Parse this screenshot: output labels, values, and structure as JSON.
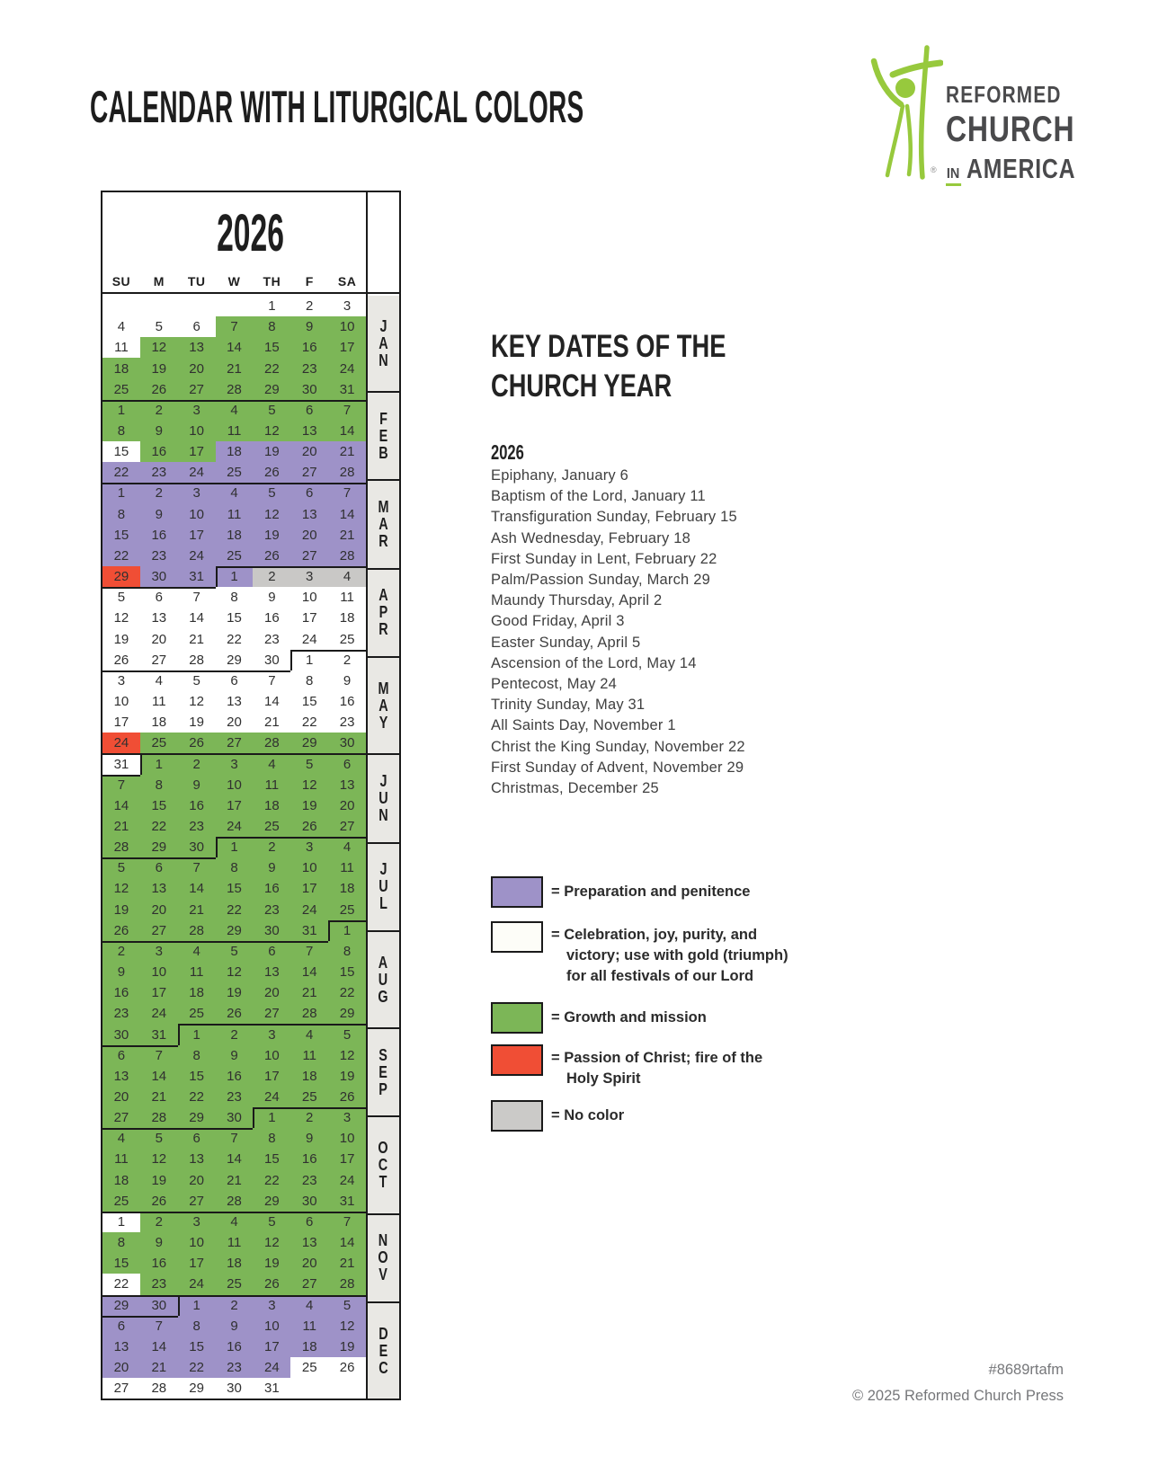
{
  "page": {
    "title": "CALENDAR WITH LITURGICAL COLORS",
    "footer_code": "#8689rtafm",
    "footer_copyright": "© 2025 Reformed Church Press"
  },
  "logo": {
    "name1": "REFORMED",
    "name2": "CHURCH",
    "name3_in": "IN",
    "name3_rest": "AMERICA",
    "registered": "®",
    "green": "#97c93d",
    "text_color": "#4a4a4c"
  },
  "calendar": {
    "year": "2026",
    "day_headers": [
      "SU",
      "M",
      "TU",
      "W",
      "TH",
      "F",
      "SA"
    ],
    "colors": {
      "W": "#ffffff",
      "G": "#7cb657",
      "P": "#9e92c8",
      "R": "#f04e35",
      "N": "#c9c8c6"
    },
    "months": [
      {
        "abbr": "JAN",
        "rows": 5
      },
      {
        "abbr": "FEB",
        "rows": 4
      },
      {
        "abbr": "MAR",
        "rows": 4
      },
      {
        "abbr": "APR",
        "rows": 4
      },
      {
        "abbr": "MAY",
        "rows": 5
      },
      {
        "abbr": "JUN",
        "rows": 4
      },
      {
        "abbr": "JUL",
        "rows": 4
      },
      {
        "abbr": "AUG",
        "rows": 5
      },
      {
        "abbr": "SEP",
        "rows": 4
      },
      {
        "abbr": "OCT",
        "rows": 5
      },
      {
        "abbr": "NOV",
        "rows": 4
      },
      {
        "abbr": "DEC",
        "rows": 5
      }
    ],
    "weeks": [
      [
        "",
        "",
        "",
        "",
        "1|1|W",
        "1|2|W",
        "1|3|W"
      ],
      [
        "1|4|W",
        "1|5|W",
        "1|6|W",
        "1|7|G",
        "1|8|G",
        "1|9|G",
        "1|10|G"
      ],
      [
        "1|11|W",
        "1|12|G",
        "1|13|G",
        "1|14|G",
        "1|15|G",
        "1|16|G",
        "1|17|G"
      ],
      [
        "1|18|G",
        "1|19|G",
        "1|20|G",
        "1|21|G",
        "1|22|G",
        "1|23|G",
        "1|24|G"
      ],
      [
        "1|25|G",
        "1|26|G",
        "1|27|G",
        "1|28|G",
        "1|29|G",
        "1|30|G",
        "1|31|G"
      ],
      [
        "2|1|G",
        "2|2|G",
        "2|3|G",
        "2|4|G",
        "2|5|G",
        "2|6|G",
        "2|7|G"
      ],
      [
        "2|8|G",
        "2|9|G",
        "2|10|G",
        "2|11|G",
        "2|12|G",
        "2|13|G",
        "2|14|G"
      ],
      [
        "2|15|W",
        "2|16|G",
        "2|17|G",
        "2|18|P",
        "2|19|P",
        "2|20|P",
        "2|21|P"
      ],
      [
        "2|22|P",
        "2|23|P",
        "2|24|P",
        "2|25|P",
        "2|26|P",
        "2|27|P",
        "2|28|P"
      ],
      [
        "3|1|P",
        "3|2|P",
        "3|3|P",
        "3|4|P",
        "3|5|P",
        "3|6|P",
        "3|7|P"
      ],
      [
        "3|8|P",
        "3|9|P",
        "3|10|P",
        "3|11|P",
        "3|12|P",
        "3|13|P",
        "3|14|P"
      ],
      [
        "3|15|P",
        "3|16|P",
        "3|17|P",
        "3|18|P",
        "3|19|P",
        "3|20|P",
        "3|21|P"
      ],
      [
        "3|22|P",
        "3|23|P",
        "3|24|P",
        "3|25|P",
        "3|26|P",
        "3|27|P",
        "3|28|P"
      ],
      [
        "3|29|R",
        "3|30|P",
        "3|31|P",
        "4|1|P",
        "4|2|N",
        "4|3|N",
        "4|4|N"
      ],
      [
        "4|5|W",
        "4|6|W",
        "4|7|W",
        "4|8|W",
        "4|9|W",
        "4|10|W",
        "4|11|W"
      ],
      [
        "4|12|W",
        "4|13|W",
        "4|14|W",
        "4|15|W",
        "4|16|W",
        "4|17|W",
        "4|18|W"
      ],
      [
        "4|19|W",
        "4|20|W",
        "4|21|W",
        "4|22|W",
        "4|23|W",
        "4|24|W",
        "4|25|W"
      ],
      [
        "4|26|W",
        "4|27|W",
        "4|28|W",
        "4|29|W",
        "4|30|W",
        "5|1|W",
        "5|2|W"
      ],
      [
        "5|3|W",
        "5|4|W",
        "5|5|W",
        "5|6|W",
        "5|7|W",
        "5|8|W",
        "5|9|W"
      ],
      [
        "5|10|W",
        "5|11|W",
        "5|12|W",
        "5|13|W",
        "5|14|W",
        "5|15|W",
        "5|16|W"
      ],
      [
        "5|17|W",
        "5|18|W",
        "5|19|W",
        "5|20|W",
        "5|21|W",
        "5|22|W",
        "5|23|W"
      ],
      [
        "5|24|R",
        "5|25|G",
        "5|26|G",
        "5|27|G",
        "5|28|G",
        "5|29|G",
        "5|30|G"
      ],
      [
        "5|31|W",
        "6|1|G",
        "6|2|G",
        "6|3|G",
        "6|4|G",
        "6|5|G",
        "6|6|G"
      ],
      [
        "6|7|G",
        "6|8|G",
        "6|9|G",
        "6|10|G",
        "6|11|G",
        "6|12|G",
        "6|13|G"
      ],
      [
        "6|14|G",
        "6|15|G",
        "6|16|G",
        "6|17|G",
        "6|18|G",
        "6|19|G",
        "6|20|G"
      ],
      [
        "6|21|G",
        "6|22|G",
        "6|23|G",
        "6|24|G",
        "6|25|G",
        "6|26|G",
        "6|27|G"
      ],
      [
        "6|28|G",
        "6|29|G",
        "6|30|G",
        "7|1|G",
        "7|2|G",
        "7|3|G",
        "7|4|G"
      ],
      [
        "7|5|G",
        "7|6|G",
        "7|7|G",
        "7|8|G",
        "7|9|G",
        "7|10|G",
        "7|11|G"
      ],
      [
        "7|12|G",
        "7|13|G",
        "7|14|G",
        "7|15|G",
        "7|16|G",
        "7|17|G",
        "7|18|G"
      ],
      [
        "7|19|G",
        "7|20|G",
        "7|21|G",
        "7|22|G",
        "7|23|G",
        "7|24|G",
        "7|25|G"
      ],
      [
        "7|26|G",
        "7|27|G",
        "7|28|G",
        "7|29|G",
        "7|30|G",
        "7|31|G",
        "8|1|G"
      ],
      [
        "8|2|G",
        "8|3|G",
        "8|4|G",
        "8|5|G",
        "8|6|G",
        "8|7|G",
        "8|8|G"
      ],
      [
        "8|9|G",
        "8|10|G",
        "8|11|G",
        "8|12|G",
        "8|13|G",
        "8|14|G",
        "8|15|G"
      ],
      [
        "8|16|G",
        "8|17|G",
        "8|18|G",
        "8|19|G",
        "8|20|G",
        "8|21|G",
        "8|22|G"
      ],
      [
        "8|23|G",
        "8|24|G",
        "8|25|G",
        "8|26|G",
        "8|27|G",
        "8|28|G",
        "8|29|G"
      ],
      [
        "8|30|G",
        "8|31|G",
        "9|1|G",
        "9|2|G",
        "9|3|G",
        "9|4|G",
        "9|5|G"
      ],
      [
        "9|6|G",
        "9|7|G",
        "9|8|G",
        "9|9|G",
        "9|10|G",
        "9|11|G",
        "9|12|G"
      ],
      [
        "9|13|G",
        "9|14|G",
        "9|15|G",
        "9|16|G",
        "9|17|G",
        "9|18|G",
        "9|19|G"
      ],
      [
        "9|20|G",
        "9|21|G",
        "9|22|G",
        "9|23|G",
        "9|24|G",
        "9|25|G",
        "9|26|G"
      ],
      [
        "9|27|G",
        "9|28|G",
        "9|29|G",
        "9|30|G",
        "10|1|G",
        "10|2|G",
        "10|3|G"
      ],
      [
        "10|4|G",
        "10|5|G",
        "10|6|G",
        "10|7|G",
        "10|8|G",
        "10|9|G",
        "10|10|G"
      ],
      [
        "10|11|G",
        "10|12|G",
        "10|13|G",
        "10|14|G",
        "10|15|G",
        "10|16|G",
        "10|17|G"
      ],
      [
        "10|18|G",
        "10|19|G",
        "10|20|G",
        "10|21|G",
        "10|22|G",
        "10|23|G",
        "10|24|G"
      ],
      [
        "10|25|G",
        "10|26|G",
        "10|27|G",
        "10|28|G",
        "10|29|G",
        "10|30|G",
        "10|31|G"
      ],
      [
        "11|1|W",
        "11|2|G",
        "11|3|G",
        "11|4|G",
        "11|5|G",
        "11|6|G",
        "11|7|G"
      ],
      [
        "11|8|G",
        "11|9|G",
        "11|10|G",
        "11|11|G",
        "11|12|G",
        "11|13|G",
        "11|14|G"
      ],
      [
        "11|15|G",
        "11|16|G",
        "11|17|G",
        "11|18|G",
        "11|19|G",
        "11|20|G",
        "11|21|G"
      ],
      [
        "11|22|W",
        "11|23|G",
        "11|24|G",
        "11|25|G",
        "11|26|G",
        "11|27|G",
        "11|28|G"
      ],
      [
        "11|29|P",
        "11|30|P",
        "12|1|P",
        "12|2|P",
        "12|3|P",
        "12|4|P",
        "12|5|P"
      ],
      [
        "12|6|P",
        "12|7|P",
        "12|8|P",
        "12|9|P",
        "12|10|P",
        "12|11|P",
        "12|12|P"
      ],
      [
        "12|13|P",
        "12|14|P",
        "12|15|P",
        "12|16|P",
        "12|17|P",
        "12|18|P",
        "12|19|P"
      ],
      [
        "12|20|P",
        "12|21|P",
        "12|22|P",
        "12|23|P",
        "12|24|P",
        "12|25|W",
        "12|26|W"
      ],
      [
        "12|27|W",
        "12|28|W",
        "12|29|W",
        "12|30|W",
        "12|31|W",
        "",
        ""
      ]
    ]
  },
  "key_dates": {
    "heading": [
      "KEY DATES OF THE",
      "CHURCH YEAR"
    ],
    "year": "2026",
    "dates": [
      "Epiphany, January 6",
      "Baptism of the Lord, January 11",
      "Transfiguration Sunday, February 15",
      "Ash Wednesday, February 18",
      "First Sunday in Lent, February 22",
      "Palm/Passion Sunday, March 29",
      "Maundy Thursday, April 2",
      "Good Friday, April 3",
      "Easter Sunday, April 5",
      "Ascension of the Lord, May 14",
      "Pentecost, May 24",
      "Trinity Sunday, May 31",
      "All Saints Day, November 1",
      "Christ the King Sunday, November 22",
      "First Sunday of Advent, November 29",
      "Christmas, December 25"
    ]
  },
  "legend": {
    "swatch_colors": {
      "P": "#9e92c8",
      "W": "#fdfdf8",
      "G": "#7cb657",
      "R": "#f04e35",
      "N": "#cbcac8"
    },
    "items": [
      {
        "key": "P",
        "name": "preparation",
        "label": [
          "= Preparation and penitence"
        ]
      },
      {
        "key": "W",
        "name": "celebration",
        "label": [
          "= Celebration, joy, purity, and",
          "victory; use with gold (triumph)",
          "for all festivals of our Lord"
        ]
      },
      {
        "key": "G",
        "name": "growth",
        "label": [
          "= Growth and mission"
        ]
      },
      {
        "key": "R",
        "name": "passion",
        "label": [
          "= Passion of Christ; fire of the",
          "Holy Spirit"
        ]
      },
      {
        "key": "N",
        "name": "no-color",
        "label": [
          "= No color"
        ]
      }
    ]
  }
}
